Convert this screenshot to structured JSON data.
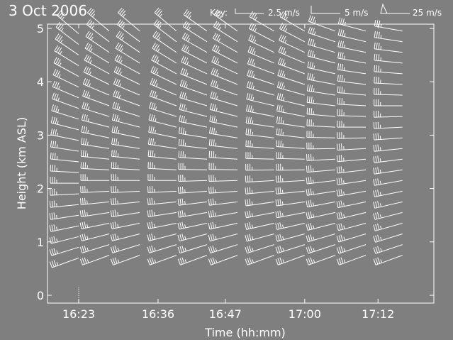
{
  "colors": {
    "background": "#7f7f7f",
    "ink": "#ffffff"
  },
  "chart_data": {
    "type": "wind-barb",
    "title": "3 Oct 2006",
    "xlabel": "Time (hh:mm)",
    "ylabel": "Height (km ASL)",
    "x_ticks": [
      "16:23",
      "16:36",
      "16:47",
      "17:00",
      "17:12"
    ],
    "y_ticks": [
      "0",
      "1",
      "2",
      "3",
      "4",
      "5"
    ],
    "ylim": [
      0,
      5
    ],
    "key": {
      "label": "Key:",
      "entries": [
        {
          "label": "2.5 m/s",
          "symbol": "half-barb"
        },
        {
          "label": "5 m/s",
          "symbol": "full-barb"
        },
        {
          "label": "25 m/s",
          "symbol": "pennant"
        }
      ]
    },
    "profiles": [
      {
        "time": "16:23",
        "bottom_km": 0.7,
        "top_km": 4.9,
        "low_dir_deg": 250,
        "high_dir_deg": 310,
        "low_speed_ms": 17.5,
        "high_speed_ms": 17.5
      },
      {
        "time": "16:28",
        "bottom_km": 0.75,
        "top_km": 4.9,
        "low_dir_deg": 250,
        "high_dir_deg": 310,
        "low_speed_ms": 17.5,
        "high_speed_ms": 17.5
      },
      {
        "time": "16:33",
        "bottom_km": 0.75,
        "top_km": 4.9,
        "low_dir_deg": 250,
        "high_dir_deg": 310,
        "low_speed_ms": 17.5,
        "high_speed_ms": 17.5
      },
      {
        "time": "16:39",
        "bottom_km": 0.75,
        "top_km": 4.9,
        "low_dir_deg": 250,
        "high_dir_deg": 310,
        "low_speed_ms": 17.5,
        "high_speed_ms": 17.5
      },
      {
        "time": "16:44",
        "bottom_km": 0.75,
        "top_km": 4.9,
        "low_dir_deg": 250,
        "high_dir_deg": 305,
        "low_speed_ms": 17.5,
        "high_speed_ms": 17.5
      },
      {
        "time": "16:49",
        "bottom_km": 0.75,
        "top_km": 4.9,
        "low_dir_deg": 250,
        "high_dir_deg": 305,
        "low_speed_ms": 17.5,
        "high_speed_ms": 17.5
      },
      {
        "time": "16:55",
        "bottom_km": 0.75,
        "top_km": 4.9,
        "low_dir_deg": 250,
        "high_dir_deg": 300,
        "low_speed_ms": 17.5,
        "high_speed_ms": 17.5
      },
      {
        "time": "17:00",
        "bottom_km": 0.75,
        "top_km": 4.9,
        "low_dir_deg": 250,
        "high_dir_deg": 300,
        "low_speed_ms": 17.5,
        "high_speed_ms": 17.5
      },
      {
        "time": "17:05",
        "bottom_km": 0.75,
        "top_km": 4.9,
        "low_dir_deg": 250,
        "high_dir_deg": 290,
        "low_speed_ms": 17.5,
        "high_speed_ms": 17.5
      },
      {
        "time": "17:10",
        "bottom_km": 0.75,
        "top_km": 4.9,
        "low_dir_deg": 250,
        "high_dir_deg": 285,
        "low_speed_ms": 17.5,
        "high_speed_ms": 17.5
      },
      {
        "time": "17:16",
        "bottom_km": 0.75,
        "top_km": 4.9,
        "low_dir_deg": 250,
        "high_dir_deg": 280,
        "low_speed_ms": 17.5,
        "high_speed_ms": 17.5
      }
    ]
  }
}
